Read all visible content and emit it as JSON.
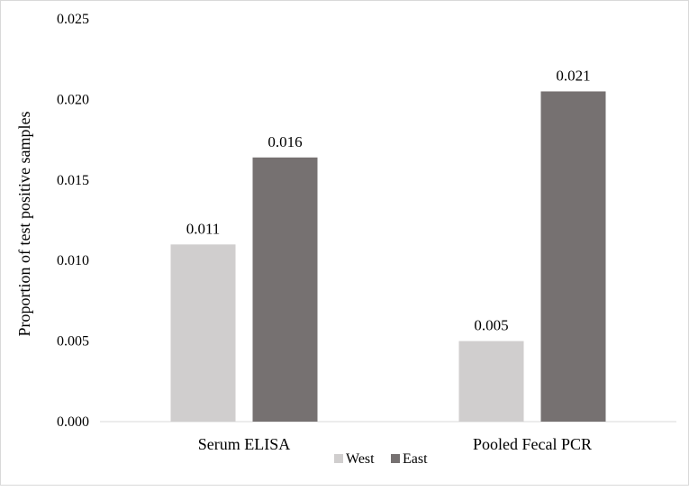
{
  "chart_data": {
    "type": "bar",
    "categories": [
      "Serum ELISA",
      "Pooled Fecal PCR"
    ],
    "series": [
      {
        "name": "West",
        "values": [
          0.011,
          0.005
        ],
        "labels": [
          "0.011",
          "0.005"
        ],
        "color": "#d0cece"
      },
      {
        "name": "East",
        "values": [
          0.0164,
          0.0205
        ],
        "labels": [
          "0.016",
          "0.021"
        ],
        "color": "#767171"
      }
    ],
    "ylabel": "Proportion of test positive samples",
    "ylim": [
      0,
      0.025
    ],
    "yticks": [
      0,
      0.005,
      0.01,
      0.015,
      0.02,
      0.025
    ],
    "ytick_labels": [
      "0.000",
      "0.005",
      "0.010",
      "0.015",
      "0.020",
      "0.025"
    ],
    "grid": false,
    "legend_position": "bottom"
  }
}
